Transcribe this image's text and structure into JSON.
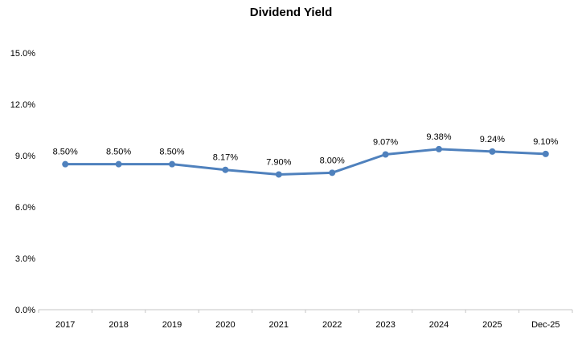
{
  "page": {
    "title": "Dividend Yield"
  },
  "chart_data": {
    "type": "line",
    "title": "Dividend Yield",
    "categories": [
      "2017",
      "2018",
      "2019",
      "2020",
      "2021",
      "2022",
      "2023",
      "2024",
      "2025",
      "Dec-25"
    ],
    "series": [
      {
        "name": "Dividend Yield",
        "values": [
          8.5,
          8.5,
          8.5,
          8.17,
          7.9,
          8.0,
          9.07,
          9.38,
          9.24,
          9.1
        ],
        "data_labels": [
          "8.50%",
          "8.50%",
          "8.50%",
          "8.17%",
          "7.90%",
          "8.00%",
          "9.07%",
          "9.38%",
          "9.24%",
          "9.10%"
        ]
      }
    ],
    "y_axis": {
      "min": 0,
      "max": 15,
      "ticks": [
        0,
        3,
        6,
        9,
        12,
        15
      ],
      "tick_labels": [
        "0.0%",
        "3.0%",
        "6.0%",
        "9.0%",
        "12.0%",
        "15.0%"
      ]
    },
    "x_axis": {
      "label": ""
    },
    "legend": "none",
    "gridlines": false,
    "colors": {
      "series": "#4F81BD",
      "axis_line": "#C6C6C6",
      "text": "#000000",
      "background": "#FFFFFF"
    }
  }
}
